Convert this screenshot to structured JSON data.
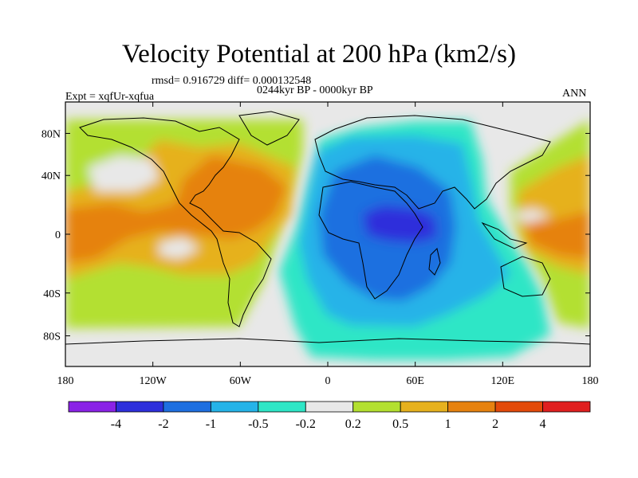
{
  "title": "Velocity Potential at 200 hPa (km2/s)",
  "stats": "rmsd= 0.916729 diff= 0.000132548",
  "period": "0244kyr BP - 0000kyr BP",
  "experiment": "Expt = xqfUr-xqfua",
  "season": "ANN",
  "map": {
    "lat_ticks": [
      {
        "label": "80N",
        "value": 80
      },
      {
        "label": "40N",
        "value": 40
      },
      {
        "label": "0",
        "value": 0
      },
      {
        "label": "40S",
        "value": -40
      },
      {
        "label": "80S",
        "value": -80
      }
    ],
    "lon_ticks": [
      {
        "label": "180",
        "value": -180
      },
      {
        "label": "120W",
        "value": -120
      },
      {
        "label": "60W",
        "value": -60
      },
      {
        "label": "0",
        "value": 0
      },
      {
        "label": "60E",
        "value": 60
      },
      {
        "label": "120E",
        "value": 120
      },
      {
        "label": "180",
        "value": 180
      }
    ]
  },
  "colorbar": {
    "colors": [
      "#8a22e6",
      "#2d2fdb",
      "#1e6fe0",
      "#25b3e8",
      "#2ee6c6",
      "#e8e8e8",
      "#b3e030",
      "#e6b11e",
      "#e6820f",
      "#e34a0a",
      "#e01f1f"
    ],
    "labels": [
      "-4",
      "-2",
      "-1",
      "-0.5",
      "-0.2",
      "0.2",
      "0.5",
      "1",
      "2",
      "4"
    ]
  }
}
